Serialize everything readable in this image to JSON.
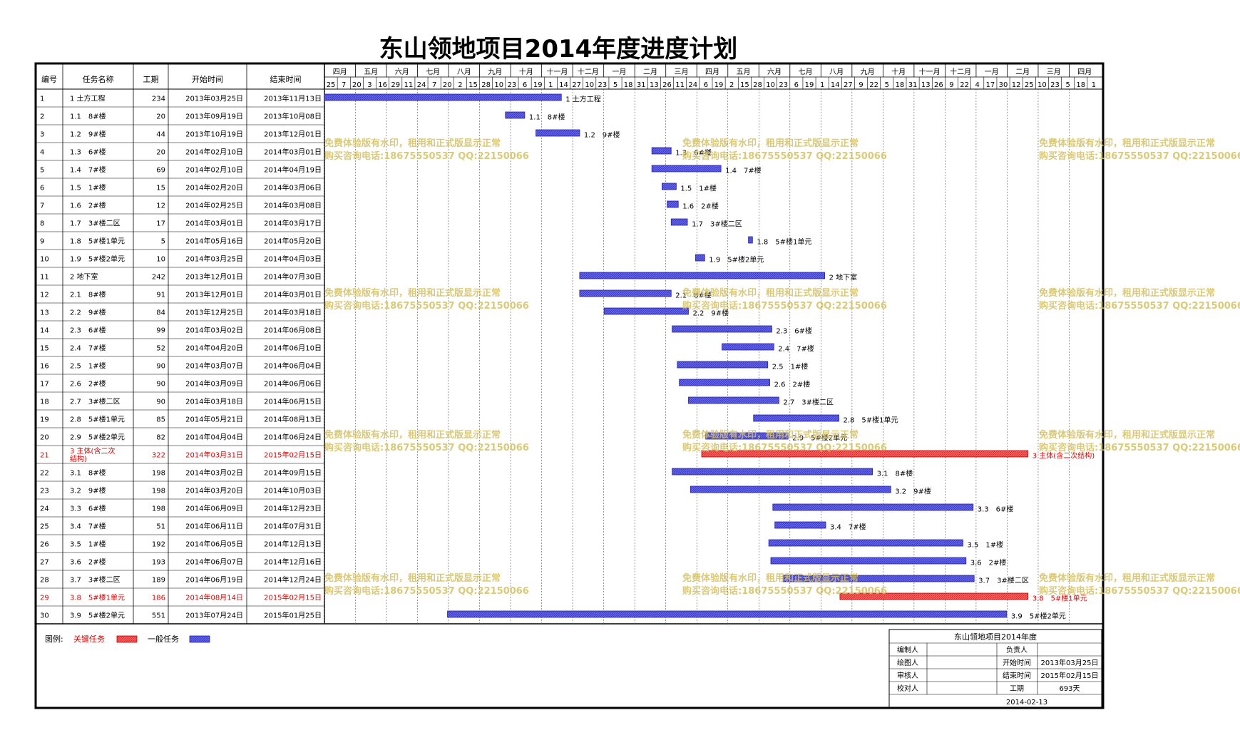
{
  "title": "东山领地项目2014年度进度计划",
  "headers": {
    "id": "编号",
    "name": "任务名称",
    "duration": "工期",
    "start": "开始时间",
    "end": "结束时间"
  },
  "timeline": {
    "months": [
      "四月",
      "五月",
      "六月",
      "七月",
      "八月",
      "九月",
      "十月",
      "十一月",
      "十二月",
      "一月",
      "二月",
      "三月",
      "四月",
      "五月",
      "六月",
      "七月",
      "八月",
      "九月",
      "十月",
      "十一月",
      "十二月",
      "一月",
      "二月",
      "三月",
      "四月"
    ],
    "week_days": [
      "25",
      "7",
      "20",
      "3",
      "16",
      "29",
      "11",
      "24",
      "7",
      "20",
      "2",
      "15",
      "28",
      "10",
      "23",
      "6",
      "19",
      "1",
      "14",
      "27",
      "10",
      "23",
      "5",
      "18",
      "31",
      "13",
      "26",
      "11",
      "24",
      "6",
      "19",
      "2",
      "15",
      "28",
      "10",
      "23",
      "6",
      "19",
      "1",
      "14",
      "27",
      "9",
      "22",
      "5",
      "18",
      "31",
      "13",
      "26",
      "9",
      "22",
      "4",
      "17",
      "30",
      "12",
      "25",
      "10",
      "23",
      "5",
      "18",
      "1"
    ]
  },
  "chart_data": {
    "type": "gantt",
    "x_axis": {
      "start": "2013-03-25",
      "end": "2015-04-27"
    },
    "tasks": [
      {
        "id": "1",
        "name": "1 土方工程",
        "duration": "234",
        "start": "2013年03月25日",
        "end": "2013年11月13日",
        "bar_label": "1 土方工程",
        "start_date": "2013-03-25",
        "end_date": "2013-11-13",
        "critical": false
      },
      {
        "id": "2",
        "name": "1.1　8#楼",
        "duration": "20",
        "start": "2013年09月19日",
        "end": "2013年10月08日",
        "bar_label": "1.1　8#楼",
        "start_date": "2013-09-19",
        "end_date": "2013-10-08",
        "critical": false
      },
      {
        "id": "3",
        "name": "1.2　9#楼",
        "duration": "44",
        "start": "2013年10月19日",
        "end": "2013年12月01日",
        "bar_label": "1.2　9#楼",
        "start_date": "2013-10-19",
        "end_date": "2013-12-01",
        "critical": false
      },
      {
        "id": "4",
        "name": "1.3　6#楼",
        "duration": "20",
        "start": "2014年02月10日",
        "end": "2014年03月01日",
        "bar_label": "1.3　6#楼",
        "start_date": "2014-02-10",
        "end_date": "2014-03-01",
        "critical": false
      },
      {
        "id": "5",
        "name": "1.4　7#楼",
        "duration": "69",
        "start": "2014年02月10日",
        "end": "2014年04月19日",
        "bar_label": "1.4　7#楼",
        "start_date": "2014-02-10",
        "end_date": "2014-04-19",
        "critical": false
      },
      {
        "id": "6",
        "name": "1.5　1#楼",
        "duration": "15",
        "start": "2014年02月20日",
        "end": "2014年03月06日",
        "bar_label": "1.5　1#楼",
        "start_date": "2014-02-20",
        "end_date": "2014-03-06",
        "critical": false
      },
      {
        "id": "7",
        "name": "1.6　2#楼",
        "duration": "12",
        "start": "2014年02月25日",
        "end": "2014年03月08日",
        "bar_label": "1.6　2#楼",
        "start_date": "2014-02-25",
        "end_date": "2014-03-08",
        "critical": false
      },
      {
        "id": "8",
        "name": "1.7　3#楼二区",
        "duration": "17",
        "start": "2014年03月01日",
        "end": "2014年03月17日",
        "bar_label": "1.7　3#楼二区",
        "start_date": "2014-03-01",
        "end_date": "2014-03-17",
        "critical": false
      },
      {
        "id": "9",
        "name": "1.8　5#楼1单元",
        "duration": "5",
        "start": "2014年05月16日",
        "end": "2014年05月20日",
        "bar_label": "1.8　5#楼1单元",
        "start_date": "2014-05-16",
        "end_date": "2014-05-20",
        "critical": false
      },
      {
        "id": "10",
        "name": "1.9　5#楼2单元",
        "duration": "10",
        "start": "2014年03月25日",
        "end": "2014年04月03日",
        "bar_label": "1.9　5#楼2单元",
        "start_date": "2014-03-25",
        "end_date": "2014-04-03",
        "critical": false
      },
      {
        "id": "11",
        "name": "2 地下室",
        "duration": "242",
        "start": "2013年12月01日",
        "end": "2014年07月30日",
        "bar_label": "2 地下室",
        "start_date": "2013-12-01",
        "end_date": "2014-07-30",
        "critical": false
      },
      {
        "id": "12",
        "name": "2.1　8#楼",
        "duration": "91",
        "start": "2013年12月01日",
        "end": "2014年03月01日",
        "bar_label": "2.1　8#楼",
        "start_date": "2013-12-01",
        "end_date": "2014-03-01",
        "critical": false
      },
      {
        "id": "13",
        "name": "2.2　9#楼",
        "duration": "84",
        "start": "2013年12月25日",
        "end": "2014年03月18日",
        "bar_label": "2.2　9#楼",
        "start_date": "2013-12-25",
        "end_date": "2014-03-18",
        "critical": false
      },
      {
        "id": "14",
        "name": "2.3　6#楼",
        "duration": "99",
        "start": "2014年03月02日",
        "end": "2014年06月08日",
        "bar_label": "2.3　6#楼",
        "start_date": "2014-03-02",
        "end_date": "2014-06-08",
        "critical": false
      },
      {
        "id": "15",
        "name": "2.4　7#楼",
        "duration": "52",
        "start": "2014年04月20日",
        "end": "2014年06月10日",
        "bar_label": "2.4　7#楼",
        "start_date": "2014-04-20",
        "end_date": "2014-06-10",
        "critical": false
      },
      {
        "id": "16",
        "name": "2.5　1#楼",
        "duration": "90",
        "start": "2014年03月07日",
        "end": "2014年06月04日",
        "bar_label": "2.5　1#楼",
        "start_date": "2014-03-07",
        "end_date": "2014-06-04",
        "critical": false
      },
      {
        "id": "17",
        "name": "2.6　2#楼",
        "duration": "90",
        "start": "2014年03月09日",
        "end": "2014年06月06日",
        "bar_label": "2.6　2#楼",
        "start_date": "2014-03-09",
        "end_date": "2014-06-06",
        "critical": false
      },
      {
        "id": "18",
        "name": "2.7　3#楼二区",
        "duration": "90",
        "start": "2014年03月18日",
        "end": "2014年06月15日",
        "bar_label": "2.7　3#楼二区",
        "start_date": "2014-03-18",
        "end_date": "2014-06-15",
        "critical": false
      },
      {
        "id": "19",
        "name": "2.8　5#楼1单元",
        "duration": "85",
        "start": "2014年05月21日",
        "end": "2014年08月13日",
        "bar_label": "2.8　5#楼1单元",
        "start_date": "2014-05-21",
        "end_date": "2014-08-13",
        "critical": false
      },
      {
        "id": "20",
        "name": "2.9　5#楼2单元",
        "duration": "82",
        "start": "2014年04月04日",
        "end": "2014年06月24日",
        "bar_label": "2.9　5#楼2单元",
        "start_date": "2014-04-04",
        "end_date": "2014-06-24",
        "critical": false
      },
      {
        "id": "21",
        "name": "3 主体(含二次结构)",
        "duration": "322",
        "start": "2014年03月31日",
        "end": "2015年02月15日",
        "bar_label": "3 主体(含二次结构)",
        "start_date": "2014-03-31",
        "end_date": "2015-02-15",
        "critical": true
      },
      {
        "id": "22",
        "name": "3.1　8#楼",
        "duration": "198",
        "start": "2014年03月02日",
        "end": "2014年09月15日",
        "bar_label": "3.1　8#楼",
        "start_date": "2014-03-02",
        "end_date": "2014-09-15",
        "critical": false
      },
      {
        "id": "23",
        "name": "3.2　9#楼",
        "duration": "198",
        "start": "2014年03月20日",
        "end": "2014年10月03日",
        "bar_label": "3.2　9#楼",
        "start_date": "2014-03-20",
        "end_date": "2014-10-03",
        "critical": false
      },
      {
        "id": "24",
        "name": "3.3　6#楼",
        "duration": "198",
        "start": "2014年06月09日",
        "end": "2014年12月23日",
        "bar_label": "3.3　6#楼",
        "start_date": "2014-06-09",
        "end_date": "2014-12-23",
        "critical": false
      },
      {
        "id": "25",
        "name": "3.4　7#楼",
        "duration": "51",
        "start": "2014年06月11日",
        "end": "2014年07月31日",
        "bar_label": "3.4　7#楼",
        "start_date": "2014-06-11",
        "end_date": "2014-07-31",
        "critical": false
      },
      {
        "id": "26",
        "name": "3.5　1#楼",
        "duration": "192",
        "start": "2014年06月05日",
        "end": "2014年12月13日",
        "bar_label": "3.5　1#楼",
        "start_date": "2014-06-05",
        "end_date": "2014-12-13",
        "critical": false
      },
      {
        "id": "27",
        "name": "3.6　2#楼",
        "duration": "193",
        "start": "2014年06月07日",
        "end": "2014年12月16日",
        "bar_label": "3.6　2#楼",
        "start_date": "2014-06-07",
        "end_date": "2014-12-16",
        "critical": false
      },
      {
        "id": "28",
        "name": "3.7　3#楼二区",
        "duration": "189",
        "start": "2014年06月19日",
        "end": "2014年12月24日",
        "bar_label": "3.7　3#楼二区",
        "start_date": "2014-06-19",
        "end_date": "2014-12-24",
        "critical": false
      },
      {
        "id": "29",
        "name": "3.8　5#楼1单元",
        "duration": "186",
        "start": "2014年08月14日",
        "end": "2015年02月15日",
        "bar_label": "3.8　5#楼1单元",
        "start_date": "2014-08-14",
        "end_date": "2015-02-15",
        "critical": true
      },
      {
        "id": "30",
        "name": "3.9　5#楼2单元",
        "duration": "551",
        "start": "2013年07月24日",
        "end": "2015年01月25日",
        "bar_label": "3.9　5#楼2单元",
        "start_date": "2013-07-24",
        "end_date": "2015-01-25",
        "critical": false
      }
    ]
  },
  "legend": {
    "label": "图例:",
    "critical": "关键任务",
    "normal": "一般任务"
  },
  "colors": {
    "normal_bar": "#6666ee",
    "critical_bar": "#ff6666",
    "critical_text": "#e00000",
    "watermark": "#d4c060"
  },
  "info_box": {
    "title": "东山领地项目2014年度",
    "labels": [
      "编制人",
      "绘图人",
      "审核人",
      "校对人"
    ],
    "right_rows": [
      {
        "label": "负责人",
        "value": ""
      },
      {
        "label": "开始时间",
        "value": "2013年03月25日"
      },
      {
        "label": "结束时间",
        "value": "2015年02月15日"
      },
      {
        "label": "工期",
        "value": "693天"
      }
    ],
    "date": "2014-02-13"
  },
  "watermark": {
    "line1": "免费体验版有水印，租用和正式版显示正常",
    "line2": "购买咨询电话:18675550537 QQ:22150066"
  }
}
